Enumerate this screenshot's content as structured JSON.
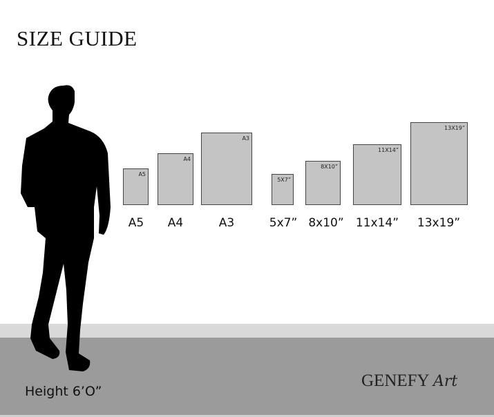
{
  "title": "SIZE GUIDE",
  "person_height": "Height 6’O”",
  "brand": {
    "name": "GENEFY",
    "script": "Art"
  },
  "frames": [
    {
      "inner": "A5",
      "label": "A5"
    },
    {
      "inner": "A4",
      "label": "A4"
    },
    {
      "inner": "A3",
      "label": "A3"
    },
    {
      "inner": "5X7”",
      "label": "5x7”"
    },
    {
      "inner": "8X10”",
      "label": "8x10”"
    },
    {
      "inner": "11X14”",
      "label": "11x14”"
    },
    {
      "inner": "13X19”",
      "label": "13x19”"
    }
  ],
  "colors": {
    "frame_fill": "#c4c4c4",
    "floor_light": "#d9d9d9",
    "floor_dark": "#9b9b9b"
  }
}
